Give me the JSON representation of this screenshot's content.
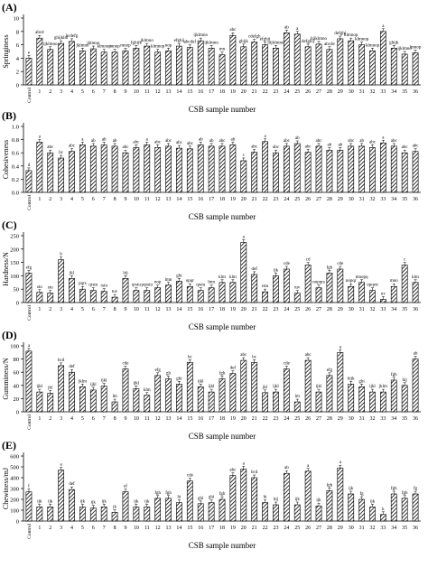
{
  "figure": {
    "tick_labels": [
      "Control",
      "1",
      "2",
      "3",
      "4",
      "5",
      "6",
      "7",
      "8",
      "9",
      "10",
      "11",
      "12",
      "13",
      "14",
      "15",
      "16",
      "17",
      "18",
      "19",
      "20",
      "21",
      "22",
      "23",
      "24",
      "25",
      "26",
      "27",
      "28",
      "29",
      "30",
      "31",
      "32",
      "33",
      "34",
      "35",
      "36"
    ],
    "xlabel": "CSB sample number"
  },
  "chart_data": [
    {
      "type": "bar",
      "panel_label": "(A)",
      "ylabel": "Springiness",
      "ylim": [
        0,
        10
      ],
      "yticks": [
        0,
        2,
        4,
        6,
        8,
        10
      ],
      "categories": [
        "Control",
        "1",
        "2",
        "3",
        "4",
        "5",
        "6",
        "7",
        "8",
        "9",
        "10",
        "11",
        "12",
        "13",
        "14",
        "15",
        "16",
        "17",
        "18",
        "19",
        "20",
        "21",
        "22",
        "23",
        "24",
        "25",
        "26",
        "27",
        "28",
        "29",
        "30",
        "31",
        "32",
        "33",
        "34",
        "35",
        "36"
      ],
      "values": [
        4.0,
        7.0,
        5.3,
        6.2,
        6.5,
        5.1,
        5.4,
        4.9,
        4.9,
        5.1,
        5.5,
        5.8,
        4.9,
        5.1,
        5.8,
        5.6,
        6.6,
        5.5,
        4.5,
        7.4,
        5.7,
        6.4,
        6.0,
        5.5,
        7.8,
        7.6,
        5.7,
        6.1,
        5.3,
        6.9,
        6.6,
        6.0,
        5.1,
        8.0,
        5.5,
        4.6,
        4.8
      ],
      "significance_labels": [
        "e",
        "abcd",
        "ijklmno",
        "ghijklm",
        "bcdefg",
        "jklmno",
        "jklmno",
        "klmnop",
        "mnop",
        "mnop",
        "fghijk",
        "jklmno",
        "klmnop",
        "nop",
        "efghij",
        "abcdef",
        "ijklmno",
        "ijklmno",
        "mn",
        "abc",
        "ghijk",
        "cdefgh",
        "efghij",
        "hijklmno",
        "ab",
        "a",
        "defghij",
        "hijklmno",
        "abcde",
        "defghi",
        "klmnop",
        "klmnop",
        "klmnop",
        "a",
        "ghijk",
        "ijklmno",
        "lmnop"
      ]
    },
    {
      "type": "bar",
      "panel_label": "(B)",
      "ylabel": "Cohesiveness",
      "ylim": [
        0,
        1.0
      ],
      "yticks": [
        0.0,
        0.2,
        0.4,
        0.6,
        0.8,
        1.0
      ],
      "categories": [
        "Control",
        "1",
        "2",
        "3",
        "4",
        "5",
        "6",
        "7",
        "8",
        "9",
        "10",
        "11",
        "12",
        "13",
        "14",
        "15",
        "16",
        "17",
        "18",
        "19",
        "20",
        "21",
        "22",
        "23",
        "24",
        "25",
        "26",
        "27",
        "28",
        "29",
        "30",
        "31",
        "32",
        "33",
        "34",
        "35",
        "36"
      ],
      "values": [
        0.33,
        0.76,
        0.6,
        0.52,
        0.62,
        0.72,
        0.7,
        0.72,
        0.7,
        0.6,
        0.68,
        0.72,
        0.68,
        0.7,
        0.67,
        0.66,
        0.72,
        0.7,
        0.7,
        0.72,
        0.48,
        0.61,
        0.77,
        0.6,
        0.7,
        0.74,
        0.61,
        0.7,
        0.64,
        0.64,
        0.7,
        0.7,
        0.68,
        0.75,
        0.7,
        0.6,
        0.62
      ],
      "significance_labels": [
        "d",
        "a",
        "abc",
        "bc",
        "abc",
        "a",
        "ab",
        "ab",
        "ab",
        "abc",
        "abc",
        "a",
        "abc",
        "abc",
        "abc",
        "abc",
        "ab",
        "ab",
        "abc",
        "ab",
        "c",
        "abc",
        "a",
        "abc",
        "abc",
        "ab",
        "abc",
        "abc",
        "ab",
        "ab",
        "abc",
        "ab",
        "abc",
        "a",
        "abc",
        "abc",
        "abc"
      ]
    },
    {
      "type": "bar",
      "panel_label": "(C)",
      "ylabel": "Hardness/N",
      "ylim": [
        0,
        250
      ],
      "yticks": [
        0,
        50,
        100,
        150,
        200,
        250
      ],
      "categories": [
        "Control",
        "1",
        "2",
        "3",
        "4",
        "5",
        "6",
        "7",
        "8",
        "9",
        "10",
        "11",
        "12",
        "13",
        "14",
        "15",
        "16",
        "17",
        "18",
        "19",
        "20",
        "21",
        "22",
        "23",
        "24",
        "25",
        "26",
        "27",
        "28",
        "29",
        "30",
        "31",
        "32",
        "33",
        "34",
        "35",
        "36"
      ],
      "values": [
        110,
        38,
        35,
        160,
        90,
        50,
        45,
        42,
        20,
        90,
        45,
        45,
        55,
        65,
        80,
        60,
        45,
        55,
        75,
        75,
        225,
        105,
        40,
        100,
        125,
        35,
        140,
        55,
        110,
        125,
        60,
        75,
        45,
        12,
        60,
        140,
        75
      ],
      "significance_labels": [
        "efg",
        "stu",
        "stu",
        "b",
        "jkl",
        "pqrs",
        "qrstu",
        "rstu",
        "tuv",
        "hij",
        "qrstu",
        "pqrstu",
        "nop",
        "lmn",
        "ghi",
        "opqr",
        "qrstu",
        "lmn",
        "klm",
        "klm",
        "a",
        "def",
        "rstu",
        "ijk",
        "cde",
        "tuv",
        "cd",
        "nopqrs",
        "fgh",
        "cde",
        "nopqr",
        "mnopq",
        "opqrst",
        "uv",
        "mno",
        "c",
        "klm"
      ]
    },
    {
      "type": "bar",
      "panel_label": "(D)",
      "ylabel": "Gumminess/N",
      "ylim": [
        0,
        100
      ],
      "yticks": [
        0,
        20,
        40,
        60,
        80,
        100
      ],
      "categories": [
        "Control",
        "1",
        "2",
        "3",
        "4",
        "5",
        "6",
        "7",
        "8",
        "9",
        "10",
        "11",
        "12",
        "13",
        "14",
        "15",
        "16",
        "17",
        "18",
        "19",
        "20",
        "21",
        "22",
        "23",
        "24",
        "25",
        "26",
        "27",
        "28",
        "29",
        "30",
        "31",
        "32",
        "33",
        "34",
        "35",
        "36"
      ],
      "values": [
        92,
        30,
        28,
        70,
        60,
        38,
        33,
        39,
        15,
        65,
        35,
        25,
        55,
        50,
        42,
        75,
        38,
        30,
        50,
        58,
        78,
        75,
        29,
        30,
        65,
        15,
        78,
        30,
        55,
        90,
        42,
        38,
        30,
        30,
        48,
        40,
        80
      ],
      "significance_labels": [
        "a",
        "ijkl",
        "jkl",
        "bcd",
        "def",
        "jklm",
        "ijkl",
        "ijkl",
        "lm",
        "cde",
        "ijkl",
        "klm",
        "efg",
        "gh",
        "ghi",
        "bc",
        "ijkl",
        "ijkl",
        "fgh",
        "def",
        "abc",
        "bc",
        "jkl",
        "ijkl",
        "cde",
        "lm",
        "abc",
        "ijkl",
        "efg",
        "a",
        "hijk",
        "ghi",
        "ijkl",
        "jklm",
        "fgh",
        "hij",
        "ab"
      ]
    },
    {
      "type": "bar",
      "panel_label": "(E)",
      "ylabel": "Chewiness/mJ",
      "ylim": [
        0,
        600
      ],
      "yticks": [
        0,
        100,
        200,
        300,
        400,
        500,
        600
      ],
      "categories": [
        "Control",
        "1",
        "2",
        "3",
        "4",
        "5",
        "6",
        "7",
        "8",
        "9",
        "10",
        "11",
        "12",
        "13",
        "14",
        "15",
        "16",
        "17",
        "18",
        "19",
        "20",
        "21",
        "22",
        "23",
        "24",
        "25",
        "26",
        "27",
        "28",
        "29",
        "30",
        "31",
        "32",
        "33",
        "34",
        "35",
        "36"
      ],
      "values": [
        270,
        130,
        130,
        470,
        290,
        130,
        120,
        130,
        80,
        270,
        130,
        130,
        210,
        210,
        170,
        370,
        160,
        170,
        200,
        420,
        480,
        400,
        170,
        150,
        440,
        150,
        460,
        140,
        280,
        490,
        250,
        200,
        130,
        60,
        250,
        210,
        250
      ],
      "significance_labels": [
        "f",
        "ijk",
        "ijk",
        "a",
        "def",
        "ijk",
        "ijk",
        "ijk",
        "jk",
        "ef",
        "ijk",
        "ijk",
        "fgh",
        "fgh",
        "hi",
        "cde",
        "ghi",
        "ghi",
        "fgh",
        "abc",
        "a",
        "bcd",
        "hi",
        "hij",
        "ab",
        "ijk",
        "a",
        "ijk",
        "fgh",
        "a",
        "ijk",
        "fg",
        "ijk",
        "k",
        "fgh",
        "fgh",
        "fg"
      ]
    }
  ]
}
